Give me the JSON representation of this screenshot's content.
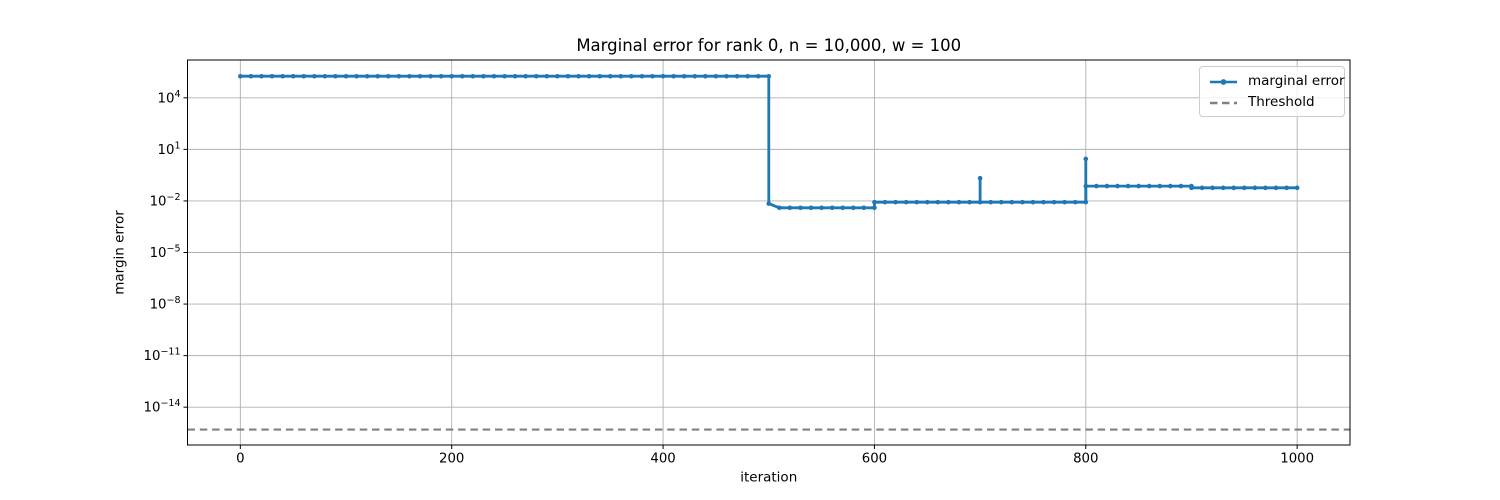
{
  "chart_data": {
    "type": "line",
    "title": "Marginal error for rank 0, n = 10,000, w = 100",
    "xlabel": "iteration",
    "ylabel": "margin error",
    "x_ticks": [
      0,
      200,
      400,
      600,
      800,
      1000
    ],
    "y_ticks_log10": [
      4,
      1,
      -2,
      -5,
      -8,
      -11,
      -14
    ],
    "xlim": [
      -50,
      1050
    ],
    "ylim_log10": [
      -16.2,
      6.2
    ],
    "grid": true,
    "legend_position": "upper right",
    "colors": {
      "series": "#1f77b4",
      "threshold": "#808080",
      "grid": "#b0b0b0",
      "spine": "#000000",
      "text": "#000000"
    },
    "series": [
      {
        "name": "marginal error",
        "style": "solid-with-dot-markers",
        "sample_step": 10,
        "segments": [
          {
            "from": 0,
            "to": 500,
            "value": 180000
          },
          {
            "from": 500,
            "to": 500,
            "value": 0.007
          },
          {
            "from": 510,
            "to": 600,
            "value": 0.004
          },
          {
            "from": 600,
            "to": 800,
            "value": 0.0085
          },
          {
            "from": 800,
            "to": 900,
            "value": 0.073
          },
          {
            "from": 900,
            "to": 1000,
            "value": 0.058
          }
        ],
        "spikes": [
          {
            "x": 700,
            "value": 0.21
          },
          {
            "x": 800,
            "value": 2.8
          }
        ]
      },
      {
        "name": "Threshold",
        "style": "horizontal-dashed",
        "value": 5e-16
      }
    ]
  }
}
